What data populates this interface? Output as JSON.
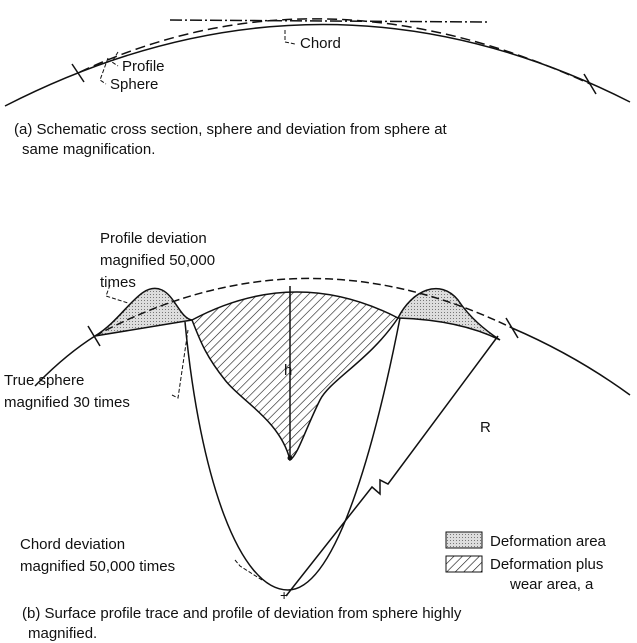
{
  "panel_a": {
    "labels": {
      "profile": "Profile",
      "sphere": "Sphere",
      "chord": "Chord"
    },
    "caption": [
      "(a) Schematic cross section, sphere and deviation from sphere at",
      "same magnification."
    ]
  },
  "panel_b": {
    "labels": {
      "profile_deviation": [
        "Profile deviation",
        "magnified 50,000",
        "times"
      ],
      "true_sphere": [
        "True sphere",
        "magnified 30 times"
      ],
      "chord_deviation": [
        "Chord deviation",
        "magnified 50,000 times"
      ],
      "h": "h",
      "r": "R"
    },
    "legend": {
      "deformation": "Deformation area",
      "deformation_wear": [
        "Deformation plus",
        "wear area, a"
      ]
    },
    "caption": [
      "(b) Surface profile trace and profile of deviation from sphere highly",
      "magnified."
    ]
  }
}
